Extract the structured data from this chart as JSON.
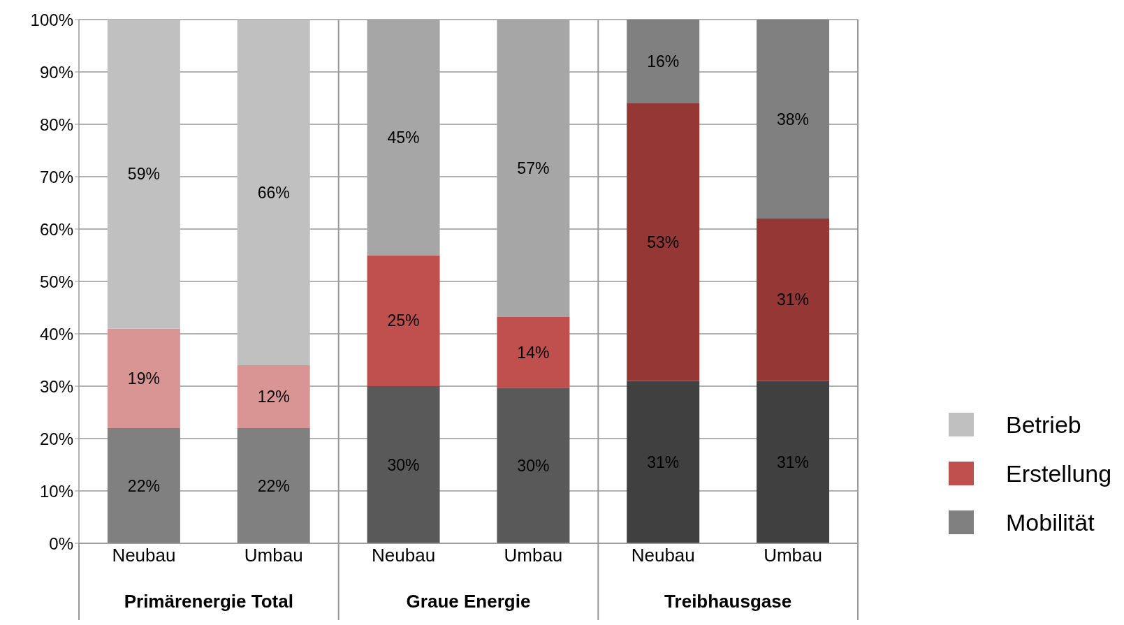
{
  "chart_data": {
    "type": "bar",
    "stacked": true,
    "categories": [
      "Neubau",
      "Umbau",
      "Neubau",
      "Umbau",
      "Neubau",
      "Umbau"
    ],
    "series": [
      {
        "name": "Mobilität",
        "color": "#808080",
        "colors": [
          "#808080",
          "#808080",
          "#595959",
          "#595959",
          "#404040",
          "#404040"
        ],
        "values": [
          22,
          22,
          30,
          29.7,
          31,
          31
        ],
        "value_labels": [
          "22%",
          "22%",
          "30%",
          "30%",
          "31%",
          "31%"
        ]
      },
      {
        "name": "Erstellung",
        "color": "#c0504d",
        "colors": [
          "#d99594",
          "#d99594",
          "#c0504d",
          "#c0504d",
          "#953735",
          "#953735"
        ],
        "values": [
          19,
          12,
          25,
          13.5,
          53,
          31
        ],
        "value_labels": [
          "19%",
          "12%",
          "25%",
          "14%",
          "53%",
          "31%"
        ]
      },
      {
        "name": "Betrieb",
        "color": "#c0c0c0",
        "colors": [
          "#c0c0c0",
          "#c0c0c0",
          "#a6a6a6",
          "#a6a6a6",
          "#808080",
          "#808080"
        ],
        "values": [
          59,
          66,
          45,
          56.8,
          16,
          38
        ],
        "value_labels": [
          "59%",
          "66%",
          "45%",
          "57%",
          "16%",
          "38%"
        ]
      }
    ],
    "ylim": [
      0,
      100
    ],
    "yticks": [
      {
        "value": 0,
        "label": "0%"
      },
      {
        "value": 10,
        "label": "10%"
      },
      {
        "value": 20,
        "label": "20%"
      },
      {
        "value": 30,
        "label": "30%"
      },
      {
        "value": 40,
        "label": "40%"
      },
      {
        "value": 50,
        "label": "50%"
      },
      {
        "value": 60,
        "label": "60%"
      },
      {
        "value": 70,
        "label": "70%"
      },
      {
        "value": 80,
        "label": "80%"
      },
      {
        "value": 90,
        "label": "90%"
      },
      {
        "value": 100,
        "label": "100%"
      }
    ],
    "grid": "y",
    "legend": "right",
    "annotations": [
      "Primärenergie Total",
      "Graue Energie",
      "Treibhausgase"
    ]
  }
}
